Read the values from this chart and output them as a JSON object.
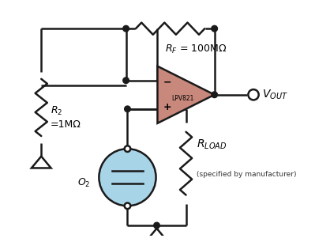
{
  "bg_color": "#ffffff",
  "line_color": "#1a1a1a",
  "line_width": 1.8,
  "opamp_fill": "#c8887c",
  "opamp_stroke": "#1a1a1a",
  "sensor_fill": "#a8d4e8",
  "sensor_stroke": "#1a1a1a",
  "opamp_label": "LPV821",
  "rf_text": "$R_F$ = 100MΩ",
  "r2_line1": "$R_2$",
  "r2_line2": "=1MΩ",
  "rload_text": "$R_{LOAD}$",
  "rload_note": "(specified by manufacturer)",
  "vout_text": "$V_{OUT}$",
  "o2_text": "$O_2$"
}
